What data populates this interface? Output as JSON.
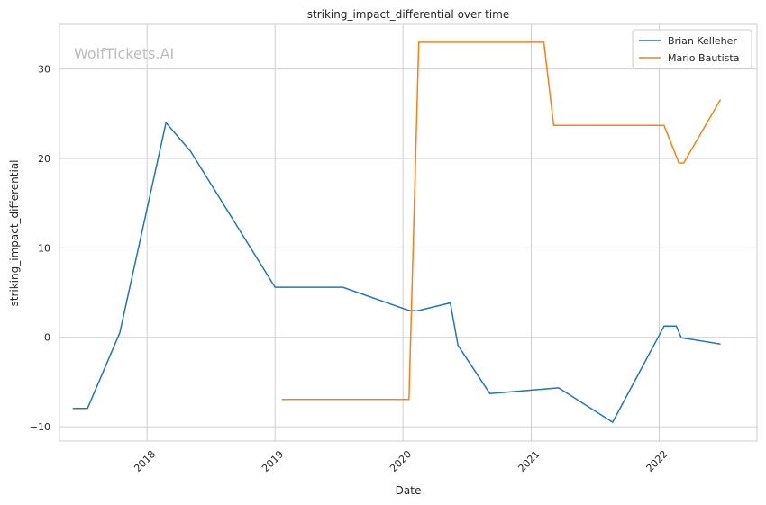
{
  "chart_data": {
    "type": "line",
    "title": "striking_impact_differential over time",
    "xlabel": "Date",
    "ylabel": "striking_impact_differential",
    "watermark": "WolfTickets.AI",
    "x_ticks": [
      "2018",
      "2019",
      "2020",
      "2021",
      "2022"
    ],
    "y_ticks": [
      -10,
      0,
      10,
      20,
      30
    ],
    "xlim": [
      "2017-04-26",
      "2022-10-07"
    ],
    "ylim": [
      -11.6,
      35.0
    ],
    "grid": true,
    "legend_position": "top-right",
    "series": [
      {
        "name": "Brian Kelleher",
        "color": "#1f77b4",
        "points": [
          [
            "2017-06-03",
            -7.95
          ],
          [
            "2017-07-15",
            -7.95
          ],
          [
            "2017-10-15",
            0.5
          ],
          [
            "2018-02-24",
            24.0
          ],
          [
            "2018-05-05",
            20.8
          ],
          [
            "2019-01-01",
            5.6
          ],
          [
            "2019-07-13",
            5.6
          ],
          [
            "2020-01-18",
            3.0
          ],
          [
            "2020-02-10",
            2.95
          ],
          [
            "2020-05-15",
            3.85
          ],
          [
            "2020-06-06",
            -0.9
          ],
          [
            "2020-09-05",
            -6.3
          ],
          [
            "2021-03-20",
            -5.65
          ],
          [
            "2021-08-21",
            -9.5
          ],
          [
            "2022-01-15",
            1.25
          ],
          [
            "2022-02-19",
            1.25
          ],
          [
            "2022-03-05",
            -0.05
          ],
          [
            "2022-06-25",
            -0.75
          ]
        ]
      },
      {
        "name": "Mario Bautista",
        "color": "#ff7f0e",
        "points": [
          [
            "2019-01-20",
            -6.95
          ],
          [
            "2020-01-18",
            -6.95
          ],
          [
            "2020-02-15",
            33.0
          ],
          [
            "2021-02-06",
            33.0
          ],
          [
            "2021-03-06",
            23.7
          ],
          [
            "2022-01-15",
            23.7
          ],
          [
            "2022-02-26",
            19.5
          ],
          [
            "2022-03-12",
            19.5
          ],
          [
            "2022-06-25",
            26.6
          ]
        ]
      }
    ]
  }
}
